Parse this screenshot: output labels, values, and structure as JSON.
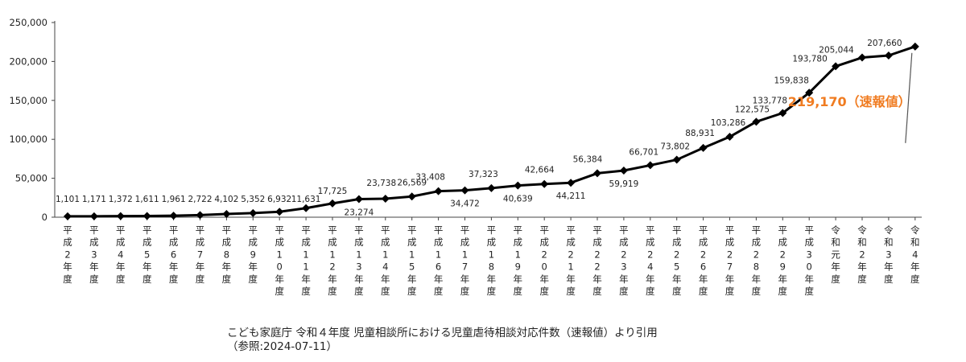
{
  "chart_data": {
    "type": "line",
    "x": [
      "平成2年度",
      "平成3年度",
      "平成4年度",
      "平成5年度",
      "平成6年度",
      "平成7年度",
      "平成8年度",
      "平成9年度",
      "平成10年度",
      "平成11年度",
      "平成12年度",
      "平成13年度",
      "平成14年度",
      "平成15年度",
      "平成16年度",
      "平成17年度",
      "平成18年度",
      "平成19年度",
      "平成20年度",
      "平成21年度",
      "平成22年度",
      "平成23年度",
      "平成24年度",
      "平成25年度",
      "平成26年度",
      "平成27年度",
      "平成28年度",
      "平成29年度",
      "平成30年度",
      "令和元年度",
      "令和2年度",
      "令和3年度",
      "令和4年度"
    ],
    "values": [
      1101,
      1171,
      1372,
      1611,
      1961,
      2722,
      4102,
      5352,
      6932,
      11631,
      17725,
      23274,
      23738,
      26569,
      33408,
      34472,
      37323,
      40639,
      42664,
      44211,
      56384,
      59919,
      66701,
      73802,
      88931,
      103286,
      122575,
      133778,
      159838,
      193780,
      205044,
      207660,
      219170
    ],
    "data_labels": [
      "1,101",
      "1,171",
      "1,372",
      "1,611",
      "1,961",
      "2,722",
      "4,102",
      "5,352",
      "6,932",
      "11,631",
      "17,725",
      "23,274",
      "23,738",
      "26,569",
      "33,408",
      "34,472",
      "37,323",
      "40,639",
      "42,664",
      "44,211",
      "56,384",
      "59,919",
      "66,701",
      "73,802",
      "88,931",
      "103,286",
      "122,575",
      "133,778",
      "159,838",
      "193,780",
      "205,044",
      "207,660",
      ""
    ],
    "highlight_label": "219,170（速報値）",
    "yticks": [
      "0",
      "50,000",
      "100,000",
      "150,000",
      "200,000",
      "250,000"
    ],
    "ylim": [
      0,
      250000
    ],
    "grid": false,
    "line_color": "#000000",
    "highlight_color": "#f07c21"
  },
  "caption": {
    "line1": "こども家庭庁 令和４年度 児童相談所における児童虐待相談対応件数（速報値）より引用",
    "line2": "（参照:2024-07-11）"
  }
}
